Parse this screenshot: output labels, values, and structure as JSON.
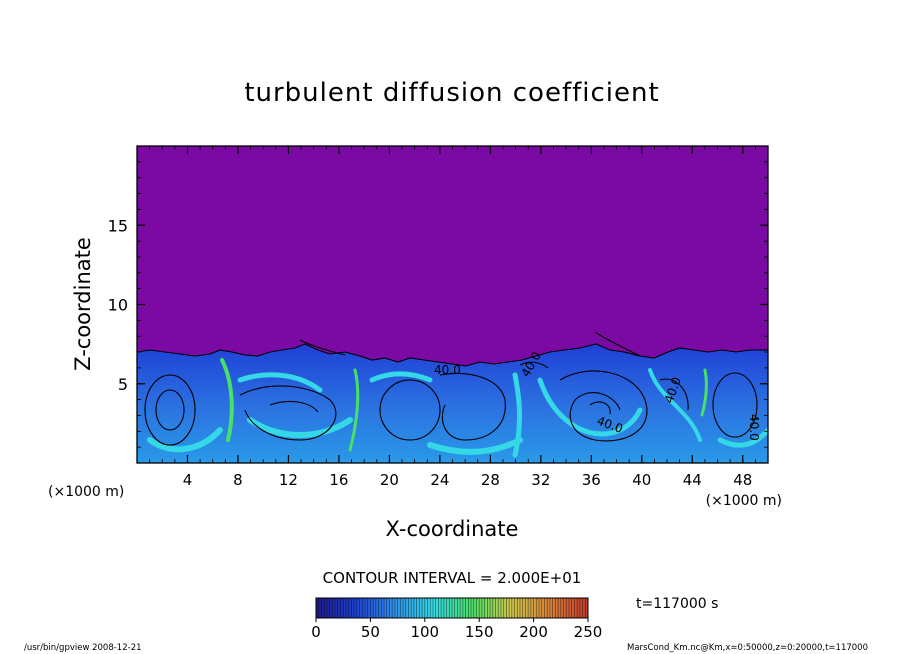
{
  "chart_data": {
    "type": "heatmap",
    "title": "turbulent diffusion coefficient",
    "xlabel": "X-coordinate",
    "ylabel": "Z-coordinate",
    "x_unit_left": "(×1000 m)",
    "x_unit_right": "(×1000 m)",
    "xlim": [
      0,
      50
    ],
    "ylim": [
      0,
      20
    ],
    "x_ticks": [
      "4",
      "8",
      "12",
      "16",
      "20",
      "24",
      "28",
      "32",
      "36",
      "40",
      "44",
      "48"
    ],
    "y_ticks": [
      "5",
      "10",
      "15"
    ],
    "contour_interval": "CONTOUR INTERVAL = 2.000E+01",
    "contour_labels": [
      "40.0",
      "40.0",
      "40.0",
      "40.0",
      "40.0"
    ],
    "colorbar": {
      "min": 0,
      "max": 250,
      "ticks": [
        "0",
        "50",
        "100",
        "150",
        "200",
        "250"
      ],
      "colors": [
        "#1b1b8a",
        "#1f3fd6",
        "#2f8fe8",
        "#35d8e6",
        "#49e06a",
        "#c9c94a",
        "#d9833a",
        "#c23a2a"
      ]
    },
    "background_color": "#7a0aa3",
    "turbulent_layer_top_km": 7,
    "time_label": "t=117000 s",
    "footer_left": "/usr/bin/gpview   2008-12-21",
    "footer_right": "MarsCond_Km.nc@Km,x=0:50000,z=0:20000,t=117000"
  }
}
